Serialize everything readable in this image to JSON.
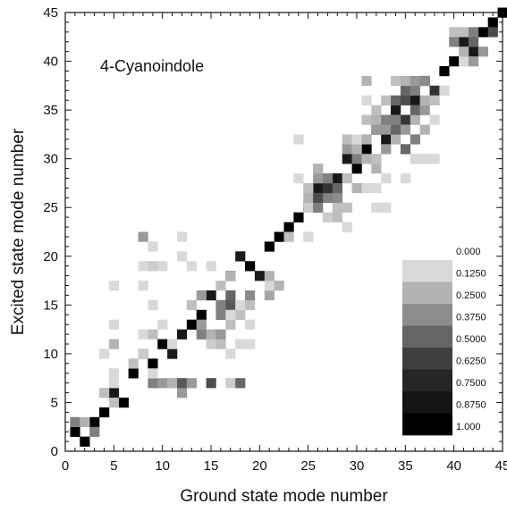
{
  "chart_data": {
    "type": "heatmap",
    "title": "4-Cyanoindole",
    "xlabel": "Ground state mode number",
    "ylabel": "Excited state mode number",
    "xlim": [
      0,
      45
    ],
    "ylim": [
      0,
      45
    ],
    "x_ticks": [
      0,
      5,
      10,
      15,
      20,
      25,
      30,
      35,
      40,
      45
    ],
    "y_ticks": [
      0,
      5,
      10,
      15,
      20,
      25,
      30,
      35,
      40,
      45
    ],
    "grid": false,
    "colorbar": {
      "position": "bottom-right",
      "labels": [
        "0.000",
        "0.1250",
        "0.2500",
        "0.3750",
        "0.5000",
        "0.6250",
        "0.7500",
        "0.8750",
        "1.000"
      ],
      "colors": [
        "#ffffff",
        "#d9d9d9",
        "#b3b3b3",
        "#8c8c8c",
        "#666666",
        "#404040",
        "#262626",
        "#141414",
        "#000000"
      ]
    },
    "value_meaning": "approximate overlap magnitude (0 to 1)",
    "cells": [
      [
        1,
        2,
        1.0
      ],
      [
        2,
        1,
        1.0
      ],
      [
        3,
        3,
        1.0
      ],
      [
        4,
        4,
        1.0
      ],
      [
        5,
        6,
        0.9
      ],
      [
        6,
        5,
        1.0
      ],
      [
        7,
        8,
        1.0
      ],
      [
        8,
        10,
        0.9
      ],
      [
        9,
        9,
        1.0
      ],
      [
        10,
        11,
        1.0
      ],
      [
        11,
        10,
        0.9
      ],
      [
        12,
        12,
        0.9
      ],
      [
        13,
        13,
        1.0
      ],
      [
        14,
        14,
        1.0
      ],
      [
        15,
        16,
        0.9
      ],
      [
        16,
        15,
        0.8
      ],
      [
        17,
        18,
        0.9
      ],
      [
        18,
        20,
        0.9
      ],
      [
        19,
        19,
        1.0
      ],
      [
        20,
        18,
        0.9
      ],
      [
        21,
        21,
        1.0
      ],
      [
        22,
        22,
        1.0
      ],
      [
        23,
        23,
        1.0
      ],
      [
        24,
        24,
        1.0
      ],
      [
        25,
        25,
        1.0
      ],
      [
        26,
        27,
        0.9
      ],
      [
        27,
        26,
        0.9
      ],
      [
        28,
        28,
        0.9
      ],
      [
        29,
        30,
        0.9
      ],
      [
        30,
        29,
        1.0
      ],
      [
        31,
        31,
        1.0
      ],
      [
        32,
        33,
        0.9
      ],
      [
        33,
        32,
        0.9
      ],
      [
        34,
        35,
        0.9
      ],
      [
        35,
        34,
        0.8
      ],
      [
        36,
        36,
        0.9
      ],
      [
        37,
        38,
        0.8
      ],
      [
        38,
        37,
        0.8
      ],
      [
        39,
        39,
        1.0
      ],
      [
        40,
        40,
        1.0
      ],
      [
        41,
        42,
        0.9
      ],
      [
        42,
        41,
        0.9
      ],
      [
        43,
        43,
        1.0
      ],
      [
        44,
        44,
        1.0
      ],
      [
        45,
        45,
        1.0
      ],
      [
        1,
        3,
        0.5
      ],
      [
        3,
        2,
        0.5
      ],
      [
        2,
        3,
        0.3
      ],
      [
        5,
        7,
        0.15
      ],
      [
        5,
        8,
        0.15
      ],
      [
        4,
        6,
        0.25
      ],
      [
        5,
        5,
        0.25
      ],
      [
        4,
        10,
        0.15
      ],
      [
        5,
        11,
        0.3
      ],
      [
        5,
        13,
        0.15
      ],
      [
        5,
        17,
        0.15
      ],
      [
        7,
        9,
        0.25
      ],
      [
        8,
        10,
        0.2
      ],
      [
        8,
        12,
        0.15
      ],
      [
        8,
        17,
        0.15
      ],
      [
        8,
        19,
        0.15
      ],
      [
        8,
        22,
        0.4
      ],
      [
        9,
        7,
        0.5
      ],
      [
        9,
        8,
        0.15
      ],
      [
        9,
        15,
        0.15
      ],
      [
        9,
        19,
        0.2
      ],
      [
        9,
        21,
        0.15
      ],
      [
        9,
        12,
        0.25
      ],
      [
        10,
        7,
        0.4
      ],
      [
        10,
        19,
        0.15
      ],
      [
        10,
        13,
        0.15
      ],
      [
        11,
        7,
        0.3
      ],
      [
        11,
        11,
        0.15
      ],
      [
        12,
        6,
        0.4
      ],
      [
        12,
        7,
        0.65
      ],
      [
        12,
        20,
        0.15
      ],
      [
        12,
        22,
        0.15
      ],
      [
        13,
        7,
        0.4
      ],
      [
        13,
        15,
        0.25
      ],
      [
        13,
        19,
        0.15
      ],
      [
        14,
        12,
        0.5
      ],
      [
        14,
        13,
        0.4
      ],
      [
        14,
        16,
        0.4
      ],
      [
        15,
        7,
        0.7
      ],
      [
        15,
        11,
        0.2
      ],
      [
        15,
        12,
        0.3
      ],
      [
        15,
        19,
        0.15
      ],
      [
        16,
        11,
        0.25
      ],
      [
        16,
        12,
        0.4
      ],
      [
        16,
        14,
        0.5
      ],
      [
        16,
        15,
        0.5
      ],
      [
        16,
        17,
        0.25
      ],
      [
        17,
        7,
        0.2
      ],
      [
        17,
        10,
        0.15
      ],
      [
        17,
        13,
        0.25
      ],
      [
        17,
        15,
        0.65
      ],
      [
        17,
        16,
        0.6
      ],
      [
        17,
        18,
        0.3
      ],
      [
        18,
        7,
        0.6
      ],
      [
        18,
        11,
        0.15
      ],
      [
        18,
        14,
        0.25
      ],
      [
        18,
        15,
        0.15
      ],
      [
        19,
        11,
        0.15
      ],
      [
        19,
        13,
        0.15
      ],
      [
        19,
        15,
        0.25
      ],
      [
        19,
        16,
        0.45
      ],
      [
        21,
        16,
        0.35
      ],
      [
        21,
        17,
        0.15
      ],
      [
        22,
        17,
        0.3
      ],
      [
        24,
        28,
        0.15
      ],
      [
        24,
        32,
        0.15
      ],
      [
        25,
        25,
        0.2
      ],
      [
        25,
        26,
        0.3
      ],
      [
        25,
        27,
        0.25
      ],
      [
        26,
        25,
        0.5
      ],
      [
        26,
        26,
        0.7
      ],
      [
        26,
        28,
        0.4
      ],
      [
        26,
        29,
        0.3
      ],
      [
        27,
        24,
        0.2
      ],
      [
        27,
        26,
        0.5
      ],
      [
        27,
        27,
        0.8
      ],
      [
        27,
        28,
        0.5
      ],
      [
        28,
        24,
        0.25
      ],
      [
        28,
        25,
        0.25
      ],
      [
        28,
        26,
        0.45
      ],
      [
        28,
        27,
        0.6
      ],
      [
        29,
        23,
        0.15
      ],
      [
        29,
        25,
        0.25
      ],
      [
        29,
        28,
        0.25
      ],
      [
        29,
        31,
        0.4
      ],
      [
        29,
        32,
        0.25
      ],
      [
        30,
        27,
        0.3
      ],
      [
        30,
        30,
        0.5
      ],
      [
        30,
        31,
        0.3
      ],
      [
        30,
        32,
        0.15
      ],
      [
        31,
        27,
        0.15
      ],
      [
        31,
        30,
        0.3
      ],
      [
        31,
        32,
        0.3
      ],
      [
        31,
        34,
        0.25
      ],
      [
        31,
        36,
        0.15
      ],
      [
        31,
        38,
        0.3
      ],
      [
        32,
        25,
        0.15
      ],
      [
        32,
        27,
        0.15
      ],
      [
        32,
        29,
        0.3
      ],
      [
        32,
        30,
        0.25
      ],
      [
        32,
        33,
        0.4
      ],
      [
        32,
        34,
        0.3
      ],
      [
        32,
        35,
        0.25
      ],
      [
        33,
        25,
        0.15
      ],
      [
        33,
        28,
        0.15
      ],
      [
        33,
        31,
        0.4
      ],
      [
        33,
        33,
        0.4
      ],
      [
        33,
        34,
        0.5
      ],
      [
        33,
        36,
        0.25
      ],
      [
        34,
        32,
        0.3
      ],
      [
        34,
        33,
        0.6
      ],
      [
        34,
        34,
        0.5
      ],
      [
        34,
        36,
        0.6
      ],
      [
        34,
        38,
        0.25
      ],
      [
        35,
        28,
        0.15
      ],
      [
        35,
        31,
        0.6
      ],
      [
        35,
        33,
        0.4
      ],
      [
        35,
        36,
        0.7
      ],
      [
        35,
        37,
        0.6
      ],
      [
        35,
        38,
        0.3
      ],
      [
        36,
        30,
        0.15
      ],
      [
        36,
        32,
        0.5
      ],
      [
        36,
        34,
        0.3
      ],
      [
        36,
        35,
        0.6
      ],
      [
        36,
        37,
        0.5
      ],
      [
        36,
        38,
        0.4
      ],
      [
        37,
        30,
        0.15
      ],
      [
        37,
        33,
        0.3
      ],
      [
        37,
        35,
        0.4
      ],
      [
        37,
        36,
        0.3
      ],
      [
        37,
        38,
        0.45
      ],
      [
        38,
        30,
        0.15
      ],
      [
        38,
        34,
        0.15
      ],
      [
        38,
        36,
        0.25
      ],
      [
        39,
        37,
        0.15
      ],
      [
        40,
        42,
        0.5
      ],
      [
        40,
        43,
        0.25
      ],
      [
        41,
        40,
        0.15
      ],
      [
        41,
        41,
        0.3
      ],
      [
        41,
        43,
        0.25
      ],
      [
        42,
        40,
        0.4
      ],
      [
        42,
        42,
        0.6
      ],
      [
        42,
        43,
        0.5
      ],
      [
        43,
        41,
        0.4
      ],
      [
        44,
        43,
        0.7
      ],
      [
        17,
        14,
        0.15
      ],
      [
        21,
        18,
        0.3
      ],
      [
        25,
        22,
        0.15
      ],
      [
        23,
        22,
        0.25
      ]
    ]
  }
}
